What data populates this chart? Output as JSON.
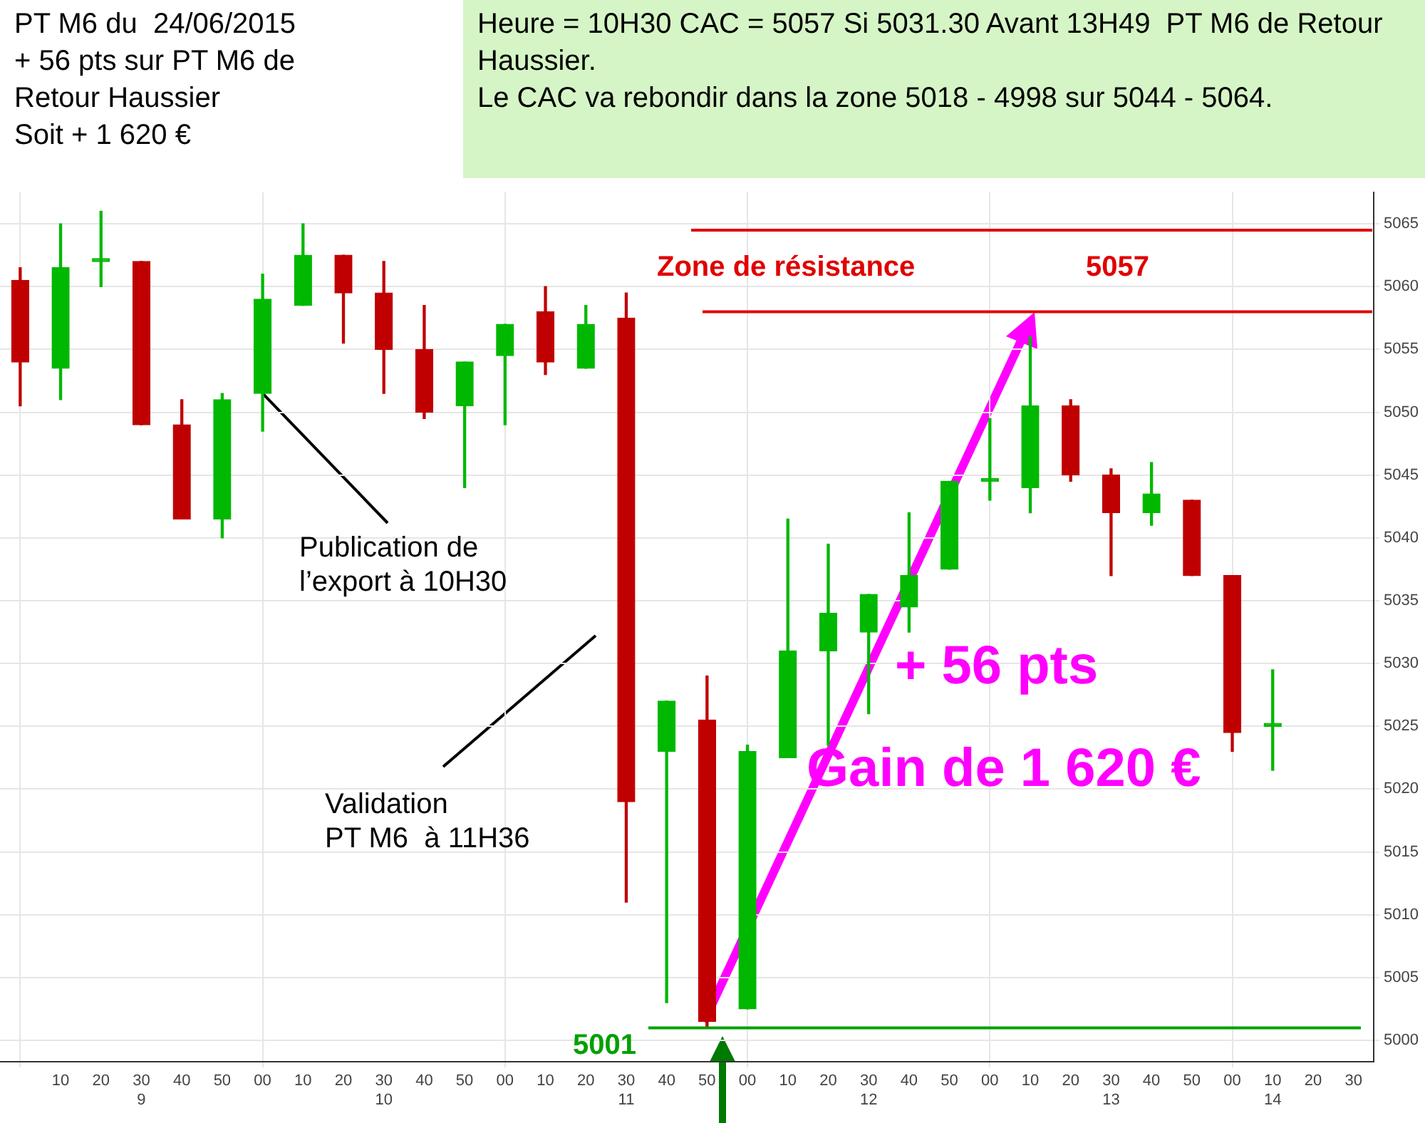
{
  "chart_data": {
    "type": "candlestick",
    "title": "PT M6 du  24/06/2015\n+ 56 pts sur PT M6 de\nRetour Haussier\nSoit + 1 620 €",
    "subtitle": "Heure = 10H30 CAC = 5057 Si 5031.30 Avant 13H49  PT M6 de Retour Haussier.\nLe CAC va rebondir dans la zone 5018 - 4998 sur 5044 - 5064.",
    "categories": [
      null,
      "10",
      "20",
      "30\n9",
      "40",
      "50",
      "00",
      "10",
      "20",
      "30\n10",
      "40",
      "50",
      "00",
      "10",
      "20",
      "30\n11",
      "40",
      "50",
      "00",
      "10",
      "20",
      "30\n12",
      "40",
      "50",
      "00",
      "10",
      "20",
      "30\n13",
      "40",
      "50",
      "00",
      "10\n14",
      "20",
      "30"
    ],
    "ohlc": [
      [
        5060.5,
        5061.5,
        5050.5,
        5054
      ],
      [
        5053.5,
        5065,
        5051,
        5061.5
      ],
      [
        5062,
        5066,
        5060,
        5062
      ],
      [
        5062,
        5062,
        5049,
        5049
      ],
      [
        5049,
        5051,
        5041.5,
        5041.5
      ],
      [
        5041.5,
        5051.5,
        5040,
        5051
      ],
      [
        5051.5,
        5061,
        5048.5,
        5059
      ],
      [
        5058.5,
        5065,
        5058.5,
        5062.5
      ],
      [
        5062.5,
        5062.5,
        5055.5,
        5059.5
      ],
      [
        5059.5,
        5062,
        5051.5,
        5055
      ],
      [
        5055,
        5058.5,
        5049.5,
        5050
      ],
      [
        5050.5,
        5054,
        5044,
        5054
      ],
      [
        5054.5,
        5057,
        5049,
        5057
      ],
      [
        5058,
        5060,
        5053,
        5054
      ],
      [
        5053.5,
        5058.5,
        5053.5,
        5057
      ],
      [
        5057.5,
        5059.5,
        5011,
        5019
      ],
      [
        5023,
        5027,
        5003,
        5027
      ],
      [
        5025.5,
        5029,
        5001,
        5001.5
      ],
      [
        5002.5,
        5023.5,
        5002.5,
        5023
      ],
      [
        5022.5,
        5041.5,
        5022.5,
        5031
      ],
      [
        5031,
        5039.5,
        5023.5,
        5034
      ],
      [
        5032.5,
        5035.5,
        5026,
        5035.5
      ],
      [
        5034.5,
        5042,
        5032.5,
        5037
      ],
      [
        5037.5,
        5044.5,
        5037.5,
        5044.5
      ],
      [
        5044.5,
        5049.5,
        5043,
        5044.5
      ],
      [
        5044,
        5056,
        5042,
        5050.5
      ],
      [
        5050.5,
        5051,
        5044.5,
        5045
      ],
      [
        5045,
        5045.5,
        5037,
        5042
      ],
      [
        5042,
        5046,
        5041,
        5043.5
      ],
      [
        5043,
        5043,
        5037,
        5037
      ],
      [
        5037,
        5037,
        5023,
        5024.5
      ],
      [
        5025,
        5029.5,
        5021.5,
        5025
      ],
      null,
      null
    ],
    "colors": [
      "#c00000",
      "#00b800",
      "#00b800",
      "#c00000",
      "#c00000",
      "#00b800",
      "#00b800",
      "#00b800",
      "#c00000",
      "#c00000",
      "#c00000",
      "#00b800",
      "#00b800",
      "#c00000",
      "#00b800",
      "#c00000",
      "#00b800",
      "#c00000",
      "#00b800",
      "#00b800",
      "#00b800",
      "#00b800",
      "#00b800",
      "#00b800",
      "#00b800",
      "#00b800",
      "#c00000",
      "#c00000",
      "#00b800",
      "#c00000",
      "#c00000",
      "#00b800",
      "#00b800",
      "#00b800"
    ],
    "ylim": [
      4998.3,
      5067.5
    ],
    "yticks": [
      5000,
      5005,
      5010,
      5015,
      5020,
      5025,
      5030,
      5035,
      5040,
      5045,
      5050,
      5055,
      5060,
      5065
    ],
    "grid": true,
    "ref_lines": [
      {
        "axis": "y",
        "value": 5064.5,
        "color": "#e00000"
      },
      {
        "axis": "y",
        "value": 5058,
        "color": "#e00000"
      },
      {
        "axis": "y",
        "value": 5001,
        "label": "5001",
        "color": "#00a000"
      }
    ],
    "annotations": [
      {
        "text": "Publication de\nl’export à 10H30",
        "x": "00",
        "y": 5051.5
      },
      "Validation\nPT M6  à 11H36",
      "+ 56 pts",
      "Gain de 1 620 €",
      "Zone de résistance",
      "5057"
    ]
  }
}
